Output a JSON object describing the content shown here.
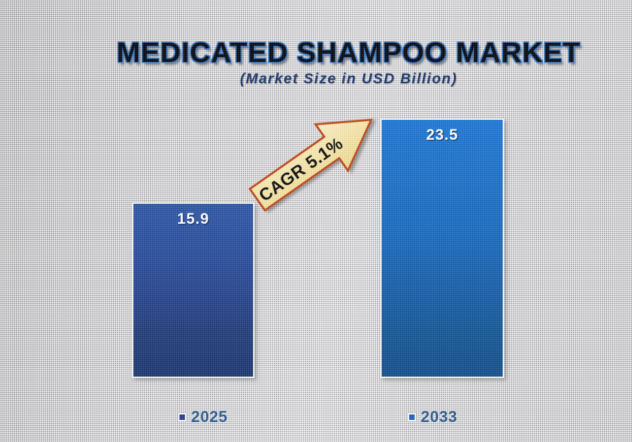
{
  "header": {
    "title": "MEDICATED SHAMPOO MARKET",
    "subtitle": "(Market Size in USD Billion)"
  },
  "annotation": {
    "cagr_label": "CAGR 5.1%"
  },
  "chart_data": {
    "type": "bar",
    "title": "MEDICATED SHAMPOO MARKET",
    "subtitle": "(Market Size in USD Billion)",
    "unit": "USD Billion",
    "categories": [
      "2025",
      "2033"
    ],
    "values": [
      15.9,
      23.5
    ],
    "value_labels": [
      "15.9",
      "23.5"
    ],
    "annotations": [
      "CAGR 5.1%"
    ],
    "legend": [
      "2025",
      "2033"
    ],
    "legend_position": "bottom",
    "grid": false,
    "axes_visible": false,
    "ylim": [
      0,
      23.5
    ],
    "bar_styles": [
      {
        "category": "2025",
        "fill_top": "#3159a8",
        "fill_bottom": "#1e3a72",
        "legend_marker": "#2b3f8f"
      },
      {
        "category": "2033",
        "fill_top": "#2079d6",
        "fill_bottom": "#14518c",
        "legend_marker": "#1e66b8"
      }
    ]
  },
  "colors": {
    "background": "#d6d6d6",
    "arrow_fill": "#f8e7a9",
    "arrow_border": "#c2491c",
    "title_fill": "#0b0b14",
    "title_glow": "#3b7cc4",
    "subtitle_text": "#1f3a6e",
    "legend_text": "#2e5b8e",
    "value_label_text": "#ffffff"
  }
}
